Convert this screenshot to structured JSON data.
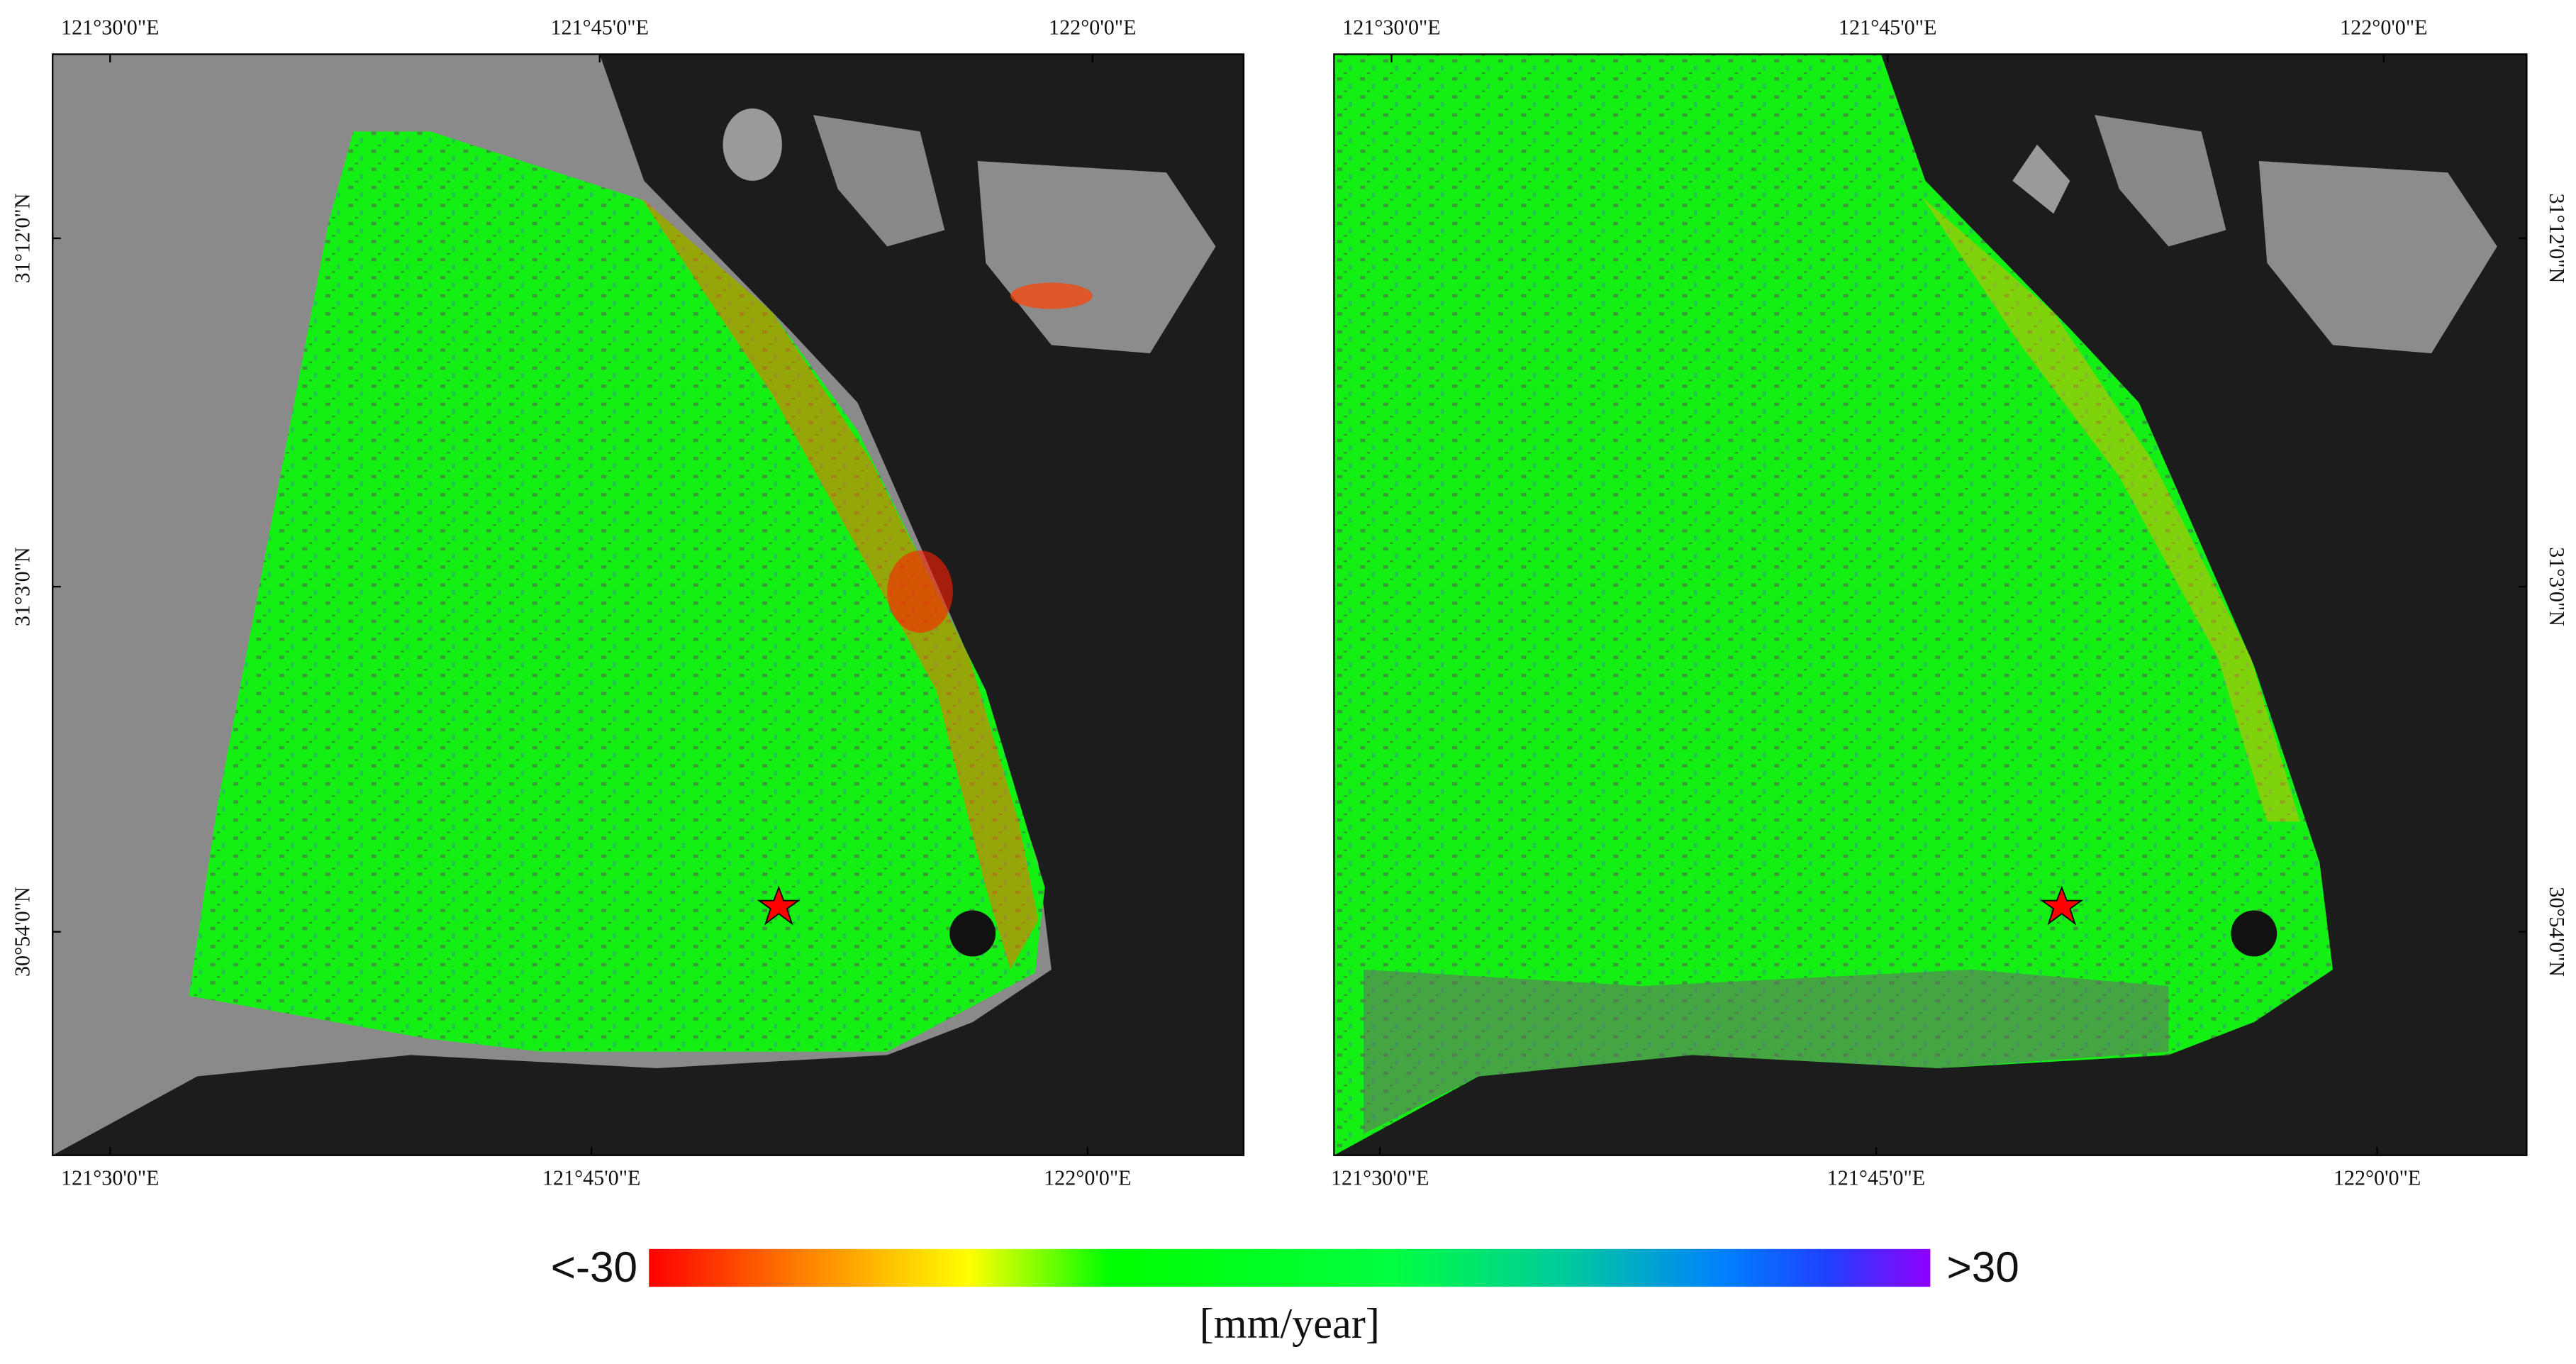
{
  "panels": [
    {
      "top_labels": [
        "121°30'0\"E",
        "121°45'0\"E",
        "122°0'0\"E"
      ],
      "bottom_labels": [
        "121°30'0\"E",
        "121°45'0\"E",
        "122°0'0\"E"
      ],
      "side_labels": [
        "31°12'0\"N",
        "31°3'0\"N",
        "30°54'0\"N"
      ]
    },
    {
      "top_labels": [
        "121°30'0\"E",
        "121°45'0\"E",
        "122°0'0\"E"
      ],
      "bottom_labels": [
        "121°30'0\"E",
        "121°45'0\"E",
        "122°0'0\"E"
      ],
      "side_labels": [
        "31°12'0\"N",
        "31°3'0\"N",
        "30°54'0\"N"
      ]
    }
  ],
  "colorbar": {
    "min_label": "<-30",
    "max_label": ">30",
    "unit": "[mm/year]"
  }
}
